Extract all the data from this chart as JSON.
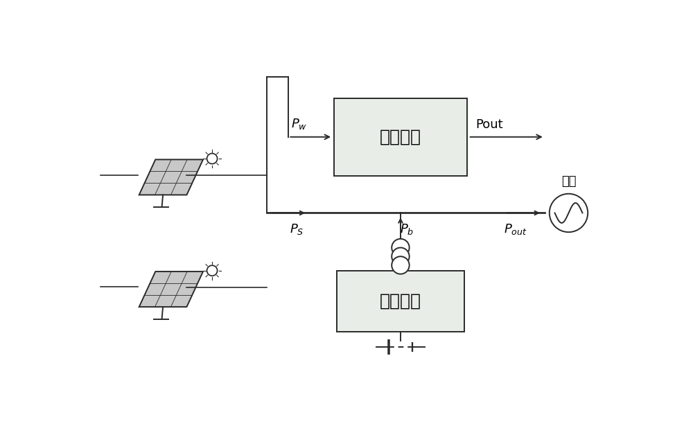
{
  "bg_color": "#ffffff",
  "line_color": "#2a2a2a",
  "box_fill": "#e8ede8",
  "text_color": "#000000",
  "control_system_label": "控制系统",
  "storage_system_label": "储能系统",
  "grid_label": "电网",
  "font_size_main": 18,
  "font_size_label": 13,
  "font_size_sub": 11,
  "figw": 10.0,
  "figh": 6.18,
  "dpi": 100,
  "xlim": [
    0,
    10
  ],
  "ylim": [
    0,
    6.18
  ]
}
